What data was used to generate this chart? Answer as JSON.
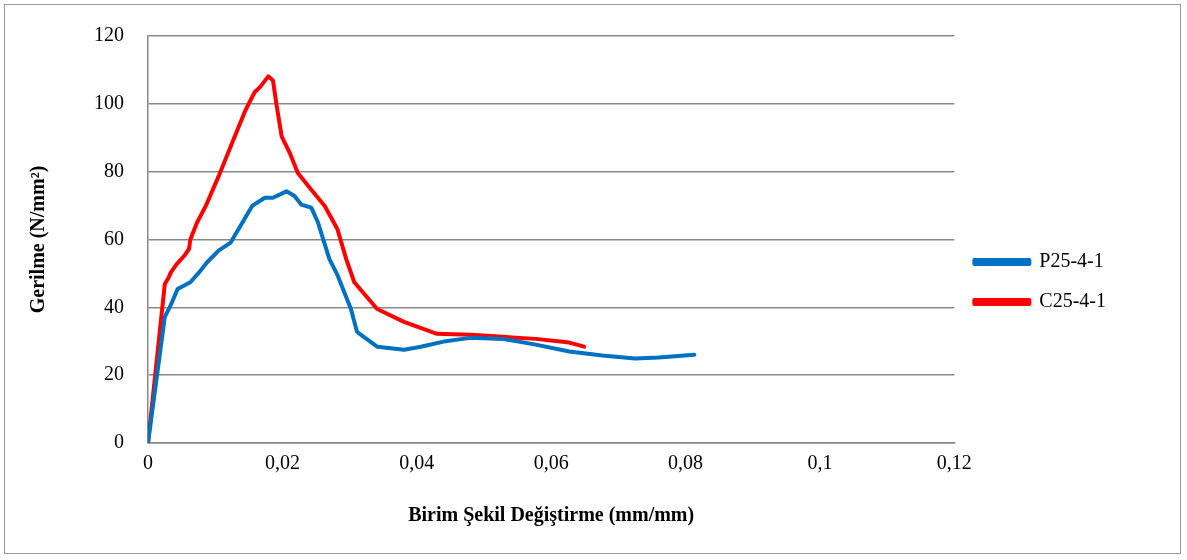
{
  "chart_data": {
    "type": "line",
    "xlabel": "Birim Şekil Değiştirme (mm/mm)",
    "ylabel": "Gerilme (N/mm²)",
    "xlim": [
      0,
      0.12
    ],
    "xticks": [
      0,
      {
        "value": 0.02,
        "label": "0,02"
      },
      {
        "value": 0.04,
        "label": "0,04"
      },
      {
        "value": 0.06,
        "label": "0,06"
      },
      {
        "value": 0.08,
        "label": "0,08"
      },
      {
        "value": 0.1,
        "label": "0,1"
      },
      {
        "value": 0.12,
        "label": "0,12"
      }
    ],
    "ylim": [
      0,
      120
    ],
    "yticks": [
      0,
      20,
      40,
      60,
      80,
      100,
      120
    ],
    "grid": "y",
    "legend": "right",
    "marker": "none",
    "line_style": "solid",
    "series": [
      {
        "name": "P25-4-1",
        "color": "#0070c0",
        "x": [
          0,
          0.0025,
          0.0034,
          0.0044,
          0.0063,
          0.0076,
          0.0088,
          0.0105,
          0.0123,
          0.0155,
          0.0174,
          0.0186,
          0.0206,
          0.0218,
          0.0228,
          0.0243,
          0.0253,
          0.027,
          0.0282,
          0.0302,
          0.0311,
          0.0317,
          0.0341,
          0.0381,
          0.0406,
          0.044,
          0.048,
          0.0528,
          0.0577,
          0.0627,
          0.0676,
          0.0725,
          0.076,
          0.0813
        ],
        "values": [
          0,
          37.2,
          40.7,
          45.4,
          47.4,
          50.3,
          53.3,
          56.7,
          59.1,
          69.9,
          72.3,
          72.3,
          74.2,
          72.8,
          70.3,
          69.4,
          65,
          54.2,
          49.5,
          39.5,
          32.8,
          31.9,
          28.4,
          27.5,
          28.4,
          29.9,
          31,
          30.7,
          29,
          27,
          25.8,
          24.9,
          25.2,
          26
        ]
      },
      {
        "name": "C25-4-1",
        "color": "#ff0000",
        "x": [
          0,
          0.0025,
          0.0031,
          0.0034,
          0.0043,
          0.0054,
          0.0061,
          0.0063,
          0.0073,
          0.0086,
          0.0105,
          0.0125,
          0.0145,
          0.0159,
          0.0167,
          0.0179,
          0.0186,
          0.0191,
          0.0199,
          0.0211,
          0.0223,
          0.0243,
          0.0263,
          0.0282,
          0.0295,
          0.0307,
          0.0341,
          0.0381,
          0.043,
          0.048,
          0.0528,
          0.0577,
          0.0627,
          0.0649
        ],
        "values": [
          0,
          46.9,
          48.9,
          50.3,
          52.8,
          55.2,
          57.2,
          60,
          65,
          69.9,
          78.6,
          88.4,
          98.1,
          103.5,
          105,
          108.1,
          106.9,
          100,
          90.3,
          85.5,
          79.6,
          74.7,
          69.9,
          63,
          54.2,
          47.4,
          39.5,
          35.7,
          32.2,
          31.9,
          31.3,
          30.7,
          29.6,
          28.4
        ]
      }
    ]
  }
}
